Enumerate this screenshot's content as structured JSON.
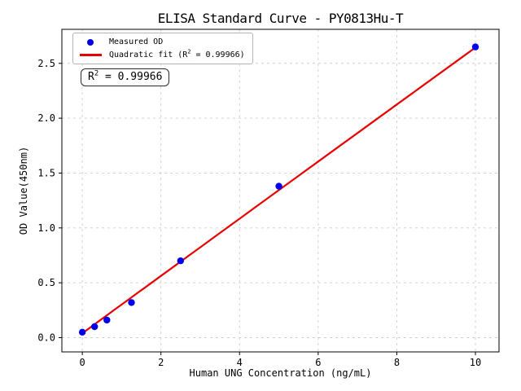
{
  "legend": {
    "measured_label": "Measured OD",
    "fit_pre": "Quadratic fit (R",
    "fit_sup": "2",
    "fit_post": " = 0.99966)"
  },
  "annotation_parts": {
    "pre": "R",
    "sup": "2",
    "post": " = 0.99966"
  },
  "colors": {
    "marker": "#0000ee",
    "fit_line": "#e60000",
    "grid": "#cdcdcd",
    "spine": "#000000",
    "legend_border": "#b4b4b4"
  },
  "chart_data": {
    "type": "scatter",
    "title": "ELISA Standard Curve - PY0813Hu-T",
    "xlabel": "Human UNG Concentration (ng/mL)",
    "ylabel": "OD Value(450nm)",
    "xlim": [
      -0.52,
      10.6
    ],
    "ylim": [
      -0.13,
      2.81
    ],
    "xticks": [
      0,
      2,
      4,
      6,
      8,
      10
    ],
    "xticklabels": [
      "0",
      "2",
      "4",
      "6",
      "8",
      "10"
    ],
    "yticks": [
      0,
      0.5,
      1,
      1.5,
      2,
      2.5
    ],
    "yticklabels": [
      "0.0",
      "0.5",
      "1.0",
      "1.5",
      "2.0",
      "2.5"
    ],
    "grid": true,
    "grid_style": "dashed",
    "legend_position": "upper left",
    "annotation": "R² = 0.99966",
    "r_squared": 0.99966,
    "series": [
      {
        "name": "Measured OD",
        "type": "scatter",
        "x": [
          0,
          0.313,
          0.625,
          1.25,
          2.5,
          5,
          10
        ],
        "y": [
          0.05,
          0.1,
          0.16,
          0.32,
          0.7,
          1.38,
          2.65
        ],
        "marker": "circle"
      },
      {
        "name": "Quadratic fit (R² = 0.99966)",
        "type": "line",
        "fit_coeffs": {
          "a": 0.04,
          "b": 0.2614,
          "c": -0.0001
        },
        "x_range": [
          0,
          10
        ]
      }
    ]
  }
}
